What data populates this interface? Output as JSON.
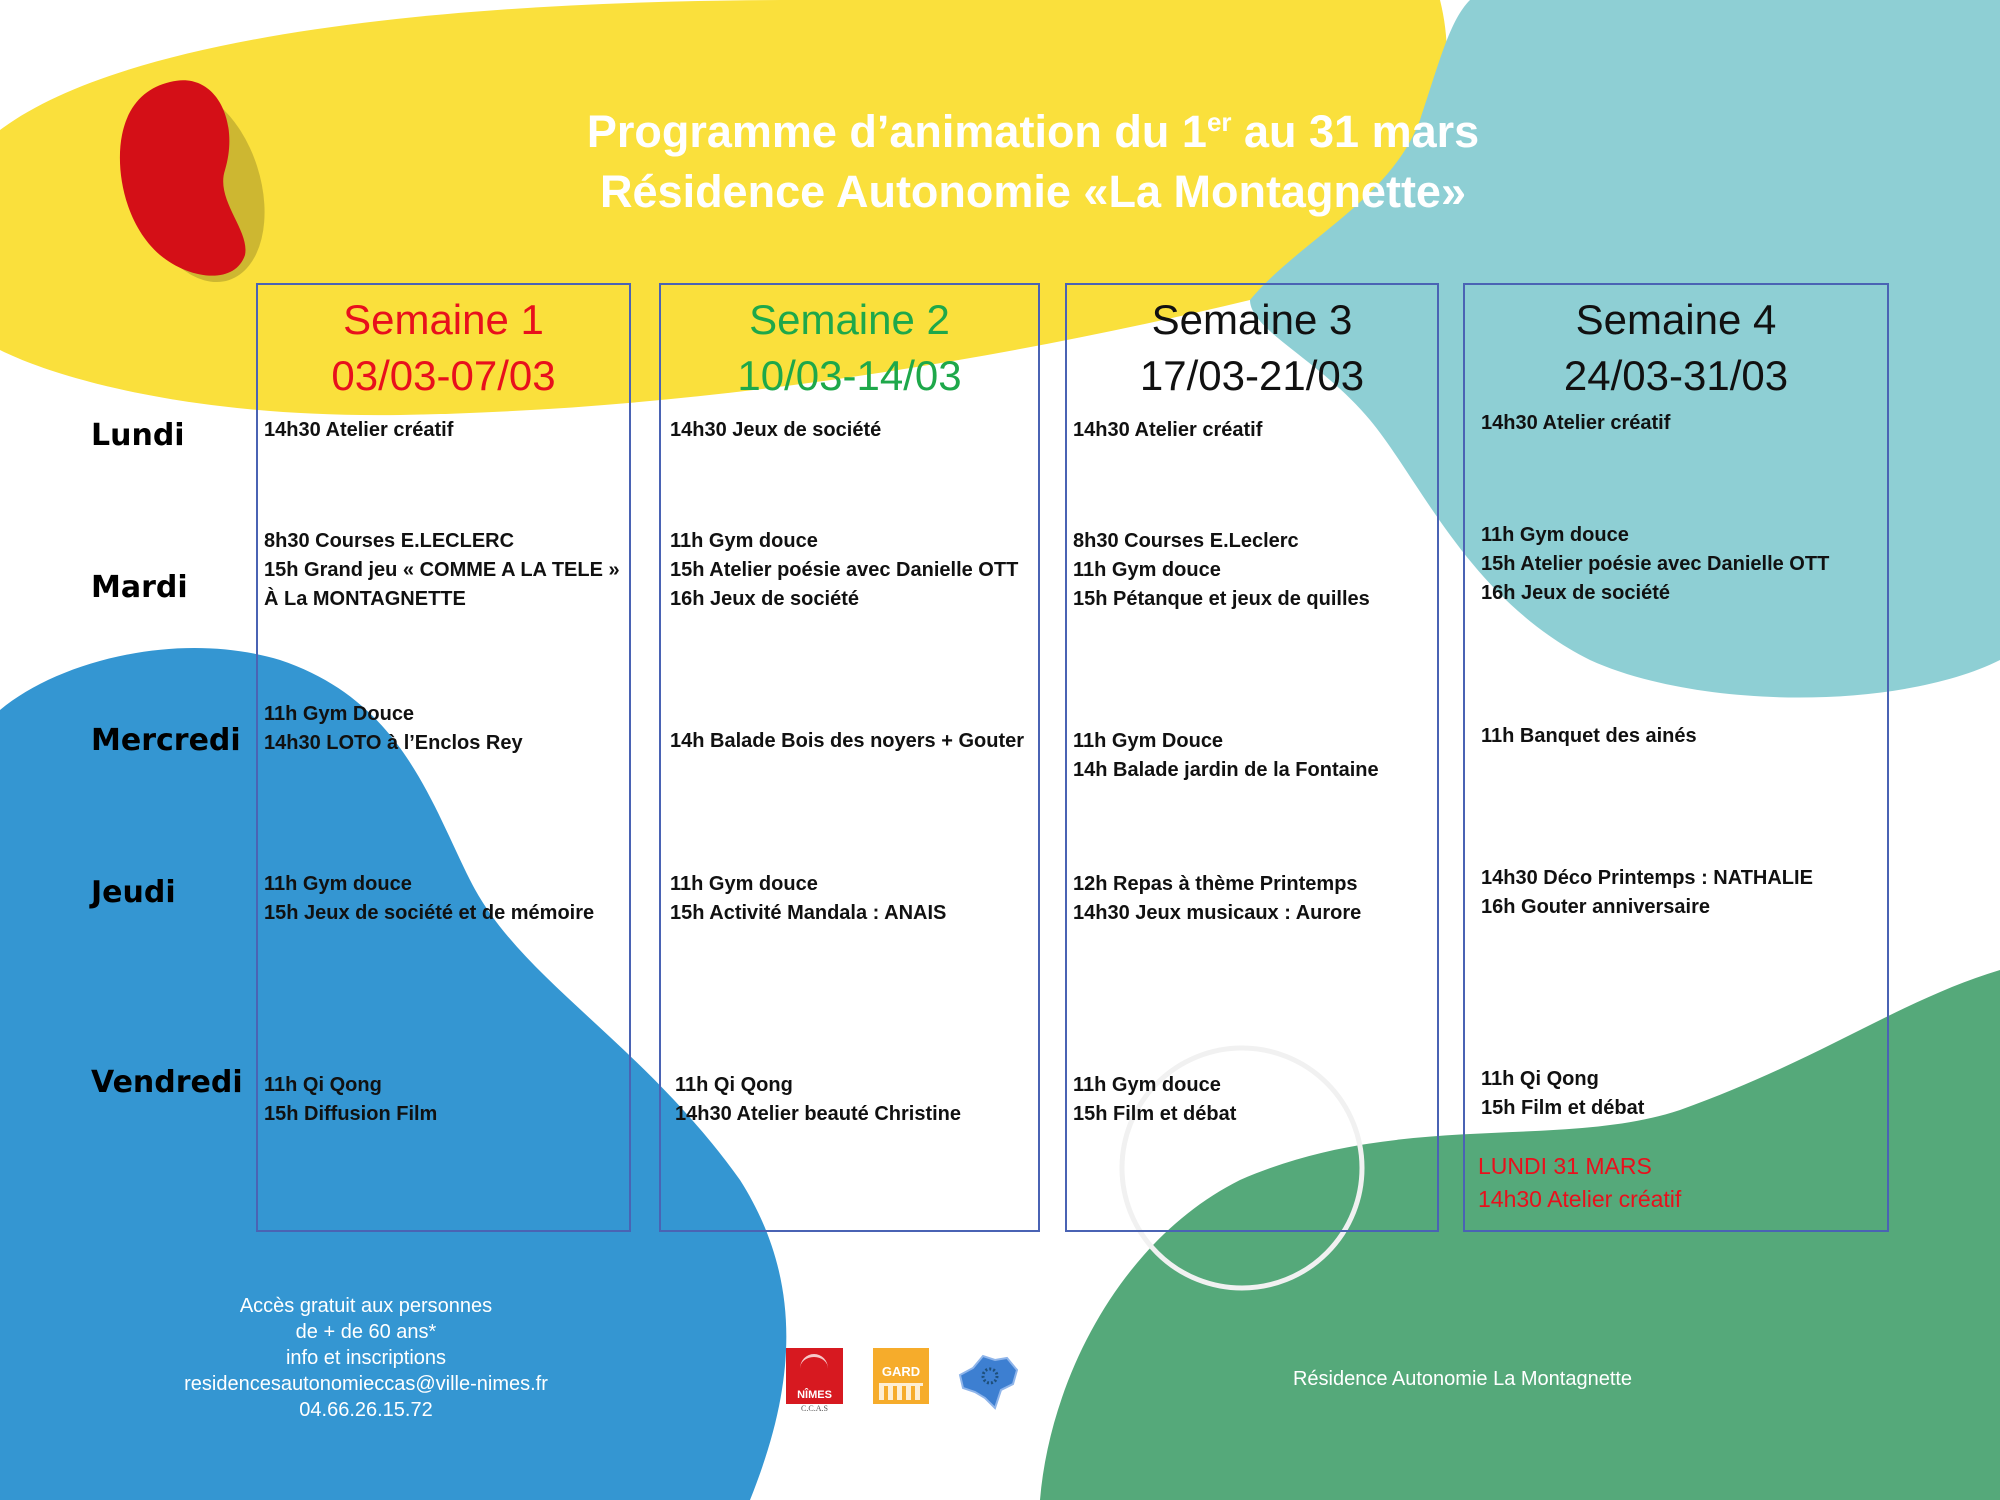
{
  "title": {
    "line1_pre": "Programme d’animation du 1",
    "line1_sup": "er",
    "line1_post": " au 31 mars",
    "line2": "Résidence Autonomie «La Montagnette»"
  },
  "colors": {
    "yellow": "#fae03c",
    "teal": "#8ecfd4",
    "blue": "#3496d2",
    "green": "#55a97a",
    "red": "#d40f17",
    "border": "#4a63b4",
    "week1": "#e8101c",
    "week2": "#1ea84a",
    "week3": "#111111",
    "week4": "#111111"
  },
  "days": [
    "Lundi",
    "Mardi",
    "Mercredi",
    "Jeudi",
    "Vendredi"
  ],
  "weeks": [
    {
      "name": "Semaine 1",
      "dates": "03/03-07/03",
      "cells": [
        [
          "14h30 Atelier créatif"
        ],
        [
          "8h30 Courses E.LECLERC",
          "15h Grand jeu « COMME A LA TELE »",
          "À La MONTAGNETTE"
        ],
        [
          "11h Gym Douce",
          "14h30 LOTO à l’Enclos Rey"
        ],
        [
          "11h Gym douce",
          "15h Jeux de société et de mémoire"
        ],
        [
          "11h Qi Qong",
          "15h Diffusion Film"
        ]
      ]
    },
    {
      "name": "Semaine 2",
      "dates": "10/03-14/03",
      "cells": [
        [
          "14h30 Jeux de société"
        ],
        [
          "11h Gym douce",
          "15h Atelier poésie avec Danielle OTT",
          "16h Jeux de société"
        ],
        [
          "14h Balade Bois des noyers + Gouter"
        ],
        [
          "11h Gym douce",
          "15h Activité Mandala : ANAIS"
        ],
        [
          "11h Qi Qong",
          "14h30 Atelier beauté Christine"
        ]
      ]
    },
    {
      "name": "Semaine 3",
      "dates": "17/03-21/03",
      "cells": [
        [
          "14h30 Atelier créatif"
        ],
        [
          "8h30 Courses E.Leclerc",
          "11h Gym douce",
          "15h Pétanque et jeux de quilles"
        ],
        [
          "11h Gym Douce",
          "14h Balade jardin de la Fontaine"
        ],
        [
          "12h Repas à thème Printemps",
          "14h30 Jeux musicaux : Aurore"
        ],
        [
          "11h Gym douce",
          "15h Film et débat"
        ]
      ]
    },
    {
      "name": "Semaine 4",
      "dates": "24/03-31/03",
      "cells": [
        [
          "14h30 Atelier créatif"
        ],
        [
          "11h Gym douce",
          "15h Atelier poésie avec Danielle OTT",
          "16h Jeux de société"
        ],
        [
          "11h Banquet des ainés"
        ],
        [
          "14h30 Déco Printemps  : NATHALIE",
          "16h Gouter anniversaire"
        ],
        [
          "11h Qi Qong",
          "15h Film et débat"
        ]
      ]
    }
  ],
  "note": {
    "line1": "LUNDI 31 MARS",
    "line2": "14h30 Atelier créatif"
  },
  "footer": {
    "left": [
      "Accès gratuit aux personnes",
      "de + de 60 ans*",
      "info et inscriptions",
      "residencesautonomieccas@ville-nimes.fr",
      "04.66.26.15.72"
    ],
    "right": "Résidence Autonomie La Montagnette"
  },
  "logos": {
    "nimes": "NÎMES",
    "nimes_sub": "C.C.A.S",
    "gard": "GARD"
  }
}
